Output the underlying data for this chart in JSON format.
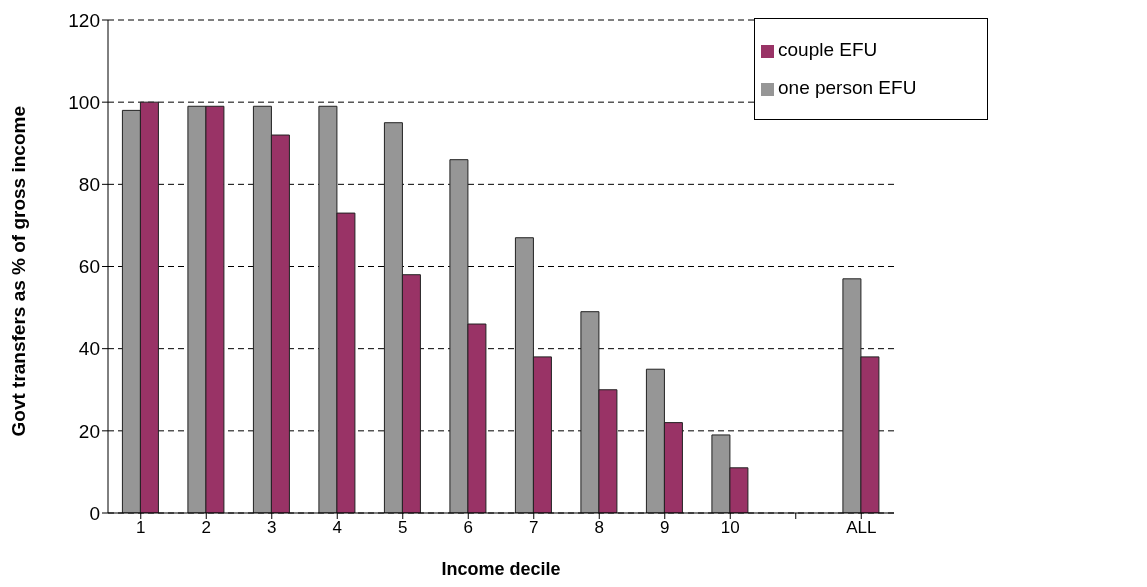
{
  "chart_data": {
    "type": "bar",
    "xlabel": "Income decile",
    "ylabel": "Govt transfers as % of gross income",
    "categories": [
      "1",
      "2",
      "3",
      "4",
      "5",
      "6",
      "7",
      "8",
      "9",
      "10",
      null,
      "ALL"
    ],
    "series": [
      {
        "name": "one person EFU",
        "color": "#969696",
        "values": [
          98,
          99,
          99,
          99,
          95,
          86,
          67,
          49,
          35,
          19,
          null,
          57
        ]
      },
      {
        "name": "couple EFU",
        "color": "#993366",
        "values": [
          100,
          99,
          92,
          73,
          58,
          46,
          38,
          30,
          22,
          11,
          null,
          38
        ]
      }
    ],
    "ylim": [
      0,
      120
    ],
    "yticks": [
      0,
      20,
      40,
      60,
      80,
      100,
      120
    ],
    "grid": "y",
    "legend": "top right"
  }
}
